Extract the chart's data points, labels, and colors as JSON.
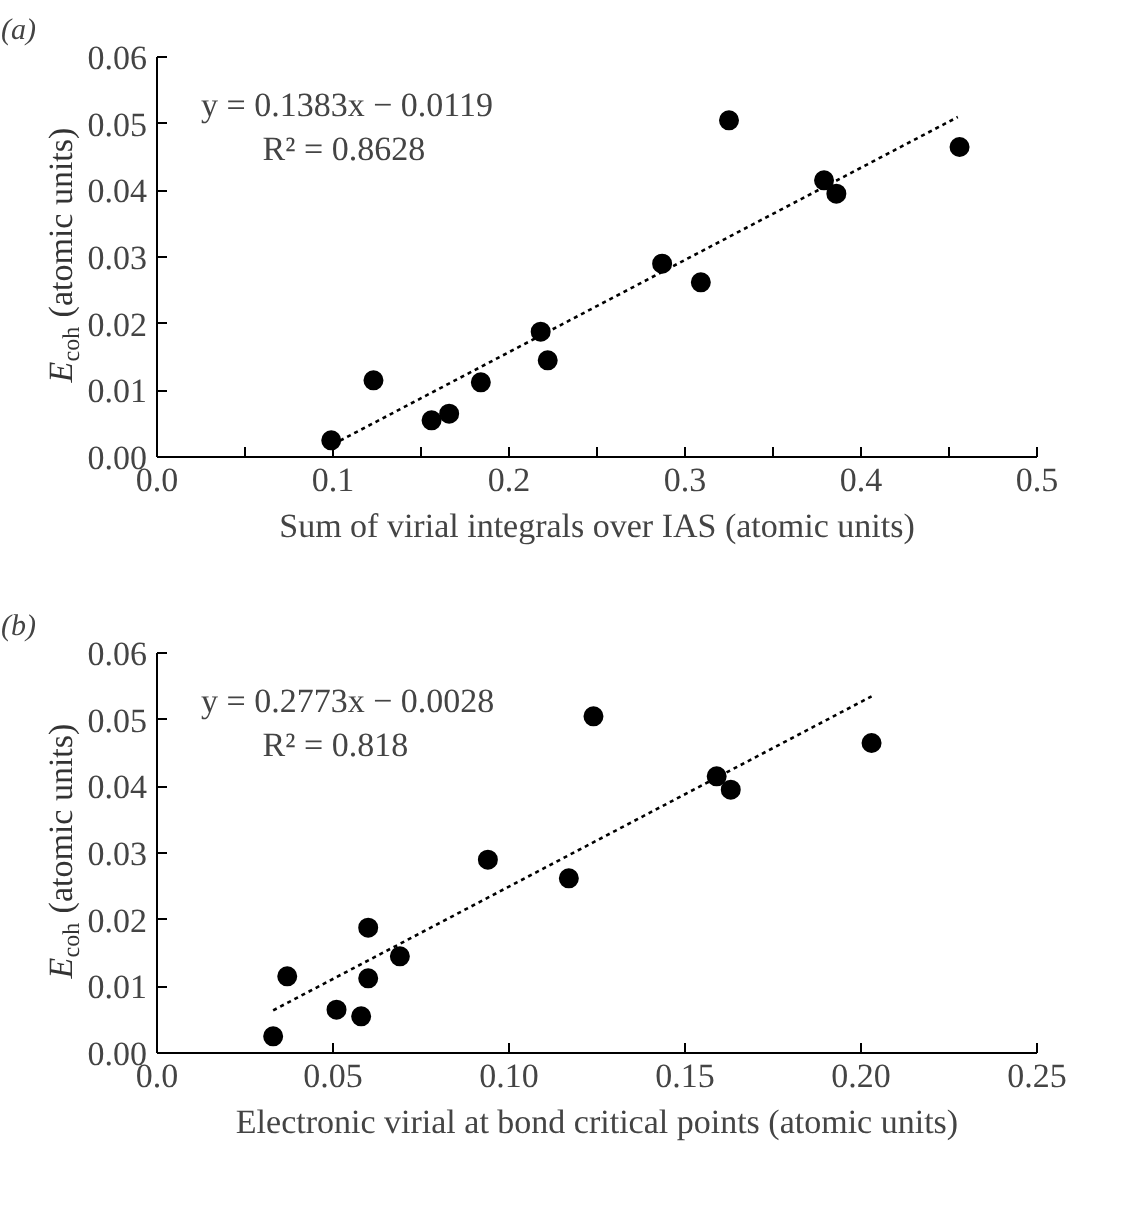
{
  "chart_data": [
    {
      "type": "scatter",
      "title": "(a)",
      "xlabel": "Sum of virial integrals over IAS (atomic units)",
      "ylabel": "E$_{coh}$ (atomic units)",
      "annotations": [
        "y = 0.1383x − 0.0119",
        "R² = 0.8628"
      ],
      "xlim": [
        0,
        0.5
      ],
      "ylim": [
        0,
        0.06
      ],
      "xticks": [
        {
          "value": 0,
          "label": "0.0"
        },
        {
          "value": 0.05,
          "label": null
        },
        {
          "value": 0.1,
          "label": "0.1"
        },
        {
          "value": 0.15,
          "label": null
        },
        {
          "value": 0.2,
          "label": "0.2"
        },
        {
          "value": 0.25,
          "label": null
        },
        {
          "value": 0.3,
          "label": "0.3"
        },
        {
          "value": 0.35,
          "label": null
        },
        {
          "value": 0.4,
          "label": "0.4"
        },
        {
          "value": 0.45,
          "label": null
        },
        {
          "value": 0.5,
          "label": "0.5"
        }
      ],
      "yticks": [
        {
          "value": 0,
          "label": "0.00"
        },
        {
          "value": 0.01,
          "label": "0.01"
        },
        {
          "value": 0.02,
          "label": "0.02"
        },
        {
          "value": 0.03,
          "label": "0.03"
        },
        {
          "value": 0.04,
          "label": "0.04"
        },
        {
          "value": 0.05,
          "label": "0.05"
        },
        {
          "value": 0.06,
          "label": "0.06"
        }
      ],
      "grid": false,
      "series": [
        {
          "marker": "circle",
          "color": "#000000",
          "x": [
            0.099,
            0.123,
            0.156,
            0.166,
            0.184,
            0.218,
            0.222,
            0.287,
            0.309,
            0.325,
            0.379,
            0.386,
            0.456
          ],
          "values": [
            0.0025,
            0.0115,
            0.0055,
            0.0065,
            0.0112,
            0.0188,
            0.0145,
            0.029,
            0.0262,
            0.0505,
            0.0415,
            0.0395,
            0.0465
          ]
        },
        {
          "type": "line",
          "line_style": "dashed",
          "marker": "none",
          "color": "#000000",
          "x": [
            0.1,
            0.455
          ],
          "values": [
            0.0019,
            0.051
          ]
        }
      ]
    },
    {
      "type": "scatter",
      "title": "(b)",
      "xlabel": "Electronic virial at bond critical points (atomic units)",
      "ylabel": "E$_{coh}$ (atomic units)",
      "annotations": [
        "y = 0.2773x − 0.0028",
        "R² = 0.818"
      ],
      "xlim": [
        0,
        0.25
      ],
      "ylim": [
        0,
        0.06
      ],
      "xticks": [
        {
          "value": 0,
          "label": "0.0"
        },
        {
          "value": 0.05,
          "label": "0.05"
        },
        {
          "value": 0.1,
          "label": "0.10"
        },
        {
          "value": 0.15,
          "label": "0.15"
        },
        {
          "value": 0.2,
          "label": "0.20"
        },
        {
          "value": 0.25,
          "label": "0.25"
        }
      ],
      "yticks": [
        {
          "value": 0,
          "label": "0.00"
        },
        {
          "value": 0.01,
          "label": "0.01"
        },
        {
          "value": 0.02,
          "label": "0.02"
        },
        {
          "value": 0.03,
          "label": "0.03"
        },
        {
          "value": 0.04,
          "label": "0.04"
        },
        {
          "value": 0.05,
          "label": "0.05"
        },
        {
          "value": 0.06,
          "label": "0.06"
        }
      ],
      "grid": false,
      "series": [
        {
          "marker": "circle",
          "color": "#000000",
          "x": [
            0.033,
            0.037,
            0.051,
            0.058,
            0.06,
            0.06,
            0.069,
            0.094,
            0.117,
            0.124,
            0.159,
            0.163,
            0.203
          ],
          "values": [
            0.0025,
            0.0115,
            0.0065,
            0.0055,
            0.0112,
            0.0188,
            0.0145,
            0.029,
            0.0262,
            0.0505,
            0.0415,
            0.0395,
            0.0465
          ]
        },
        {
          "type": "line",
          "line_style": "dashed",
          "marker": "none",
          "color": "#000000",
          "x": [
            0.033,
            0.203
          ],
          "values": [
            0.0064,
            0.0535
          ]
        }
      ]
    }
  ]
}
